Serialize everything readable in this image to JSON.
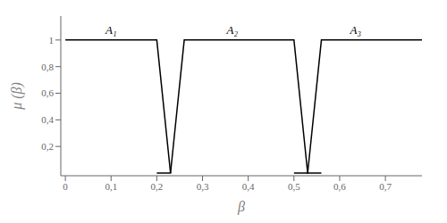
{
  "chart_data": {
    "type": "line",
    "xlabel": "β",
    "ylabel": "μ (β)",
    "xlim": [
      -0.01,
      0.78
    ],
    "ylim": [
      -0.02,
      1.18
    ],
    "xticks": [
      0,
      {
        "value": 0.1,
        "label": "0,1"
      },
      {
        "value": 0.2,
        "label": "0,2"
      },
      {
        "value": 0.3,
        "label": "0,3"
      },
      {
        "value": 0.4,
        "label": "0,4"
      },
      {
        "value": 0.5,
        "label": "0,5"
      },
      {
        "value": 0.6,
        "label": "0,6"
      },
      {
        "value": 0.7,
        "label": "0,7"
      }
    ],
    "yticks": [
      {
        "value": 0.2,
        "label": "0,2"
      },
      {
        "value": 0.4,
        "label": "0,4"
      },
      {
        "value": 0.6,
        "label": "0,6"
      },
      {
        "value": 0.8,
        "label": "0,8"
      },
      1
    ],
    "grid": false,
    "series": [
      {
        "color": "#000000",
        "x": [
          0.0,
          0.2,
          0.23
        ],
        "values": [
          1.0,
          1.0,
          0.0
        ]
      },
      {
        "color": "#000000",
        "x": [
          0.2,
          0.23,
          0.26,
          0.5,
          0.53,
          0.56
        ],
        "values": [
          0.0,
          0.0,
          1.0,
          1.0,
          0.0,
          0.0
        ]
      },
      {
        "color": "#000000",
        "x": [
          0.5,
          0.53,
          0.56,
          0.78
        ],
        "values": [
          0.0,
          0.0,
          1.0,
          1.0
        ]
      }
    ],
    "annotations": [
      {
        "text": "A₁",
        "x": 0.1,
        "y": 1.08
      },
      {
        "text": "A₂",
        "x": 0.365,
        "y": 1.08
      },
      {
        "text": "A₃",
        "x": 0.635,
        "y": 1.08
      }
    ]
  }
}
